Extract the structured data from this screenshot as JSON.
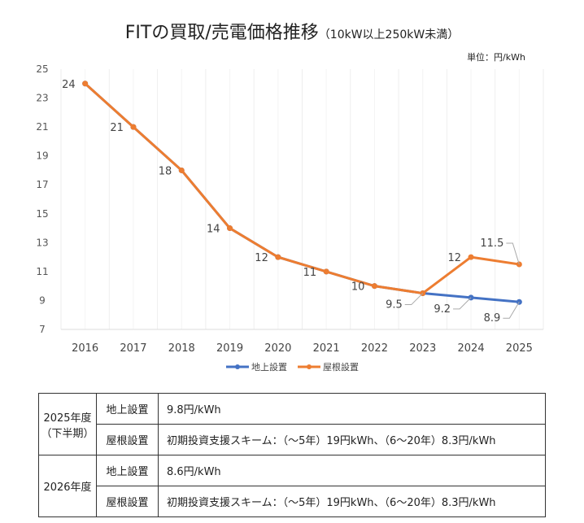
{
  "title": "FITの買取/売電価格推移",
  "subtitle": "（10kW以上250kW未満）",
  "unit": "単位：円/kWh",
  "chart_data": {
    "type": "line",
    "title": "FITの買取/売電価格推移（10kW以上250kW未満）",
    "ylabel": "円/kWh",
    "x": [
      "2016",
      "2017",
      "2018",
      "2019",
      "2020",
      "2021",
      "2022",
      "2023",
      "2024",
      "2025"
    ],
    "yticks": [
      7,
      9,
      11,
      13,
      15,
      17,
      19,
      21,
      23,
      25
    ],
    "ylim": [
      7,
      25
    ],
    "legend": "bottom",
    "series": [
      {
        "name": "地上設置",
        "color": "#4472c4",
        "values": [
          24,
          21,
          18,
          14,
          12,
          11,
          10,
          9.5,
          9.2,
          8.9
        ],
        "labels": [
          null,
          null,
          null,
          null,
          null,
          null,
          null,
          null,
          "9.2",
          "8.9"
        ]
      },
      {
        "name": "屋根設置",
        "color": "#ed7d31",
        "values": [
          24,
          21,
          18,
          14,
          12,
          11,
          10,
          9.5,
          12,
          11.5
        ],
        "labels": [
          "24",
          "21",
          "18",
          "14",
          "12",
          "11",
          "10",
          "9.5",
          "12",
          "11.5"
        ]
      }
    ]
  },
  "table": [
    {
      "year": "2025年度",
      "sub": "（下半期）",
      "rows": [
        {
          "kind": "地上設置",
          "price": "9.8円/kWh"
        },
        {
          "kind": "屋根設置",
          "price": "初期投資支援スキーム：（〜5年）19円kWh、（6〜20年）8.3円/kWh"
        }
      ]
    },
    {
      "year": "2026年度",
      "sub": "",
      "rows": [
        {
          "kind": "地上設置",
          "price": "8.6円/kWh"
        },
        {
          "kind": "屋根設置",
          "price": "初期投資支援スキーム：（〜5年）19円kWh、（6〜20年）8.3円/kWh"
        }
      ]
    }
  ]
}
